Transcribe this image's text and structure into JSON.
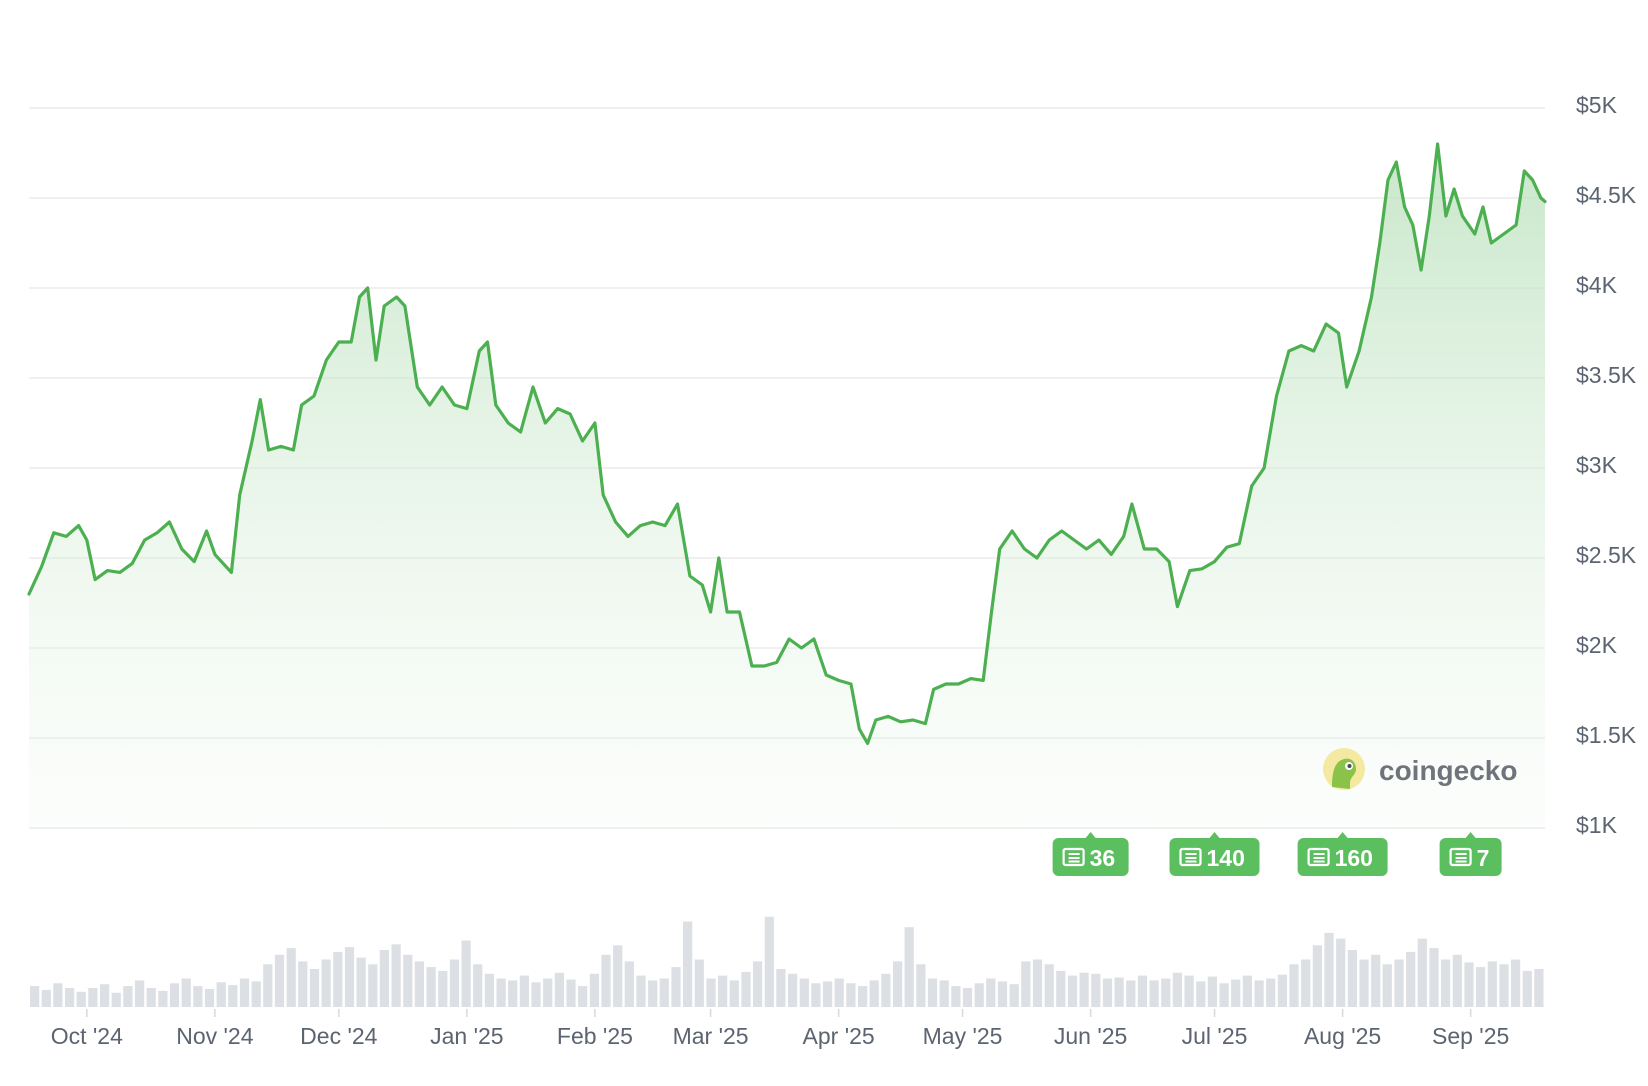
{
  "chart_data": {
    "type": "area",
    "title": "",
    "xlabel": "",
    "ylabel": "",
    "ylim": [
      1000,
      5000
    ],
    "y_ticks": [
      "$5K",
      "$4.5K",
      "$4K",
      "$3.5K",
      "$3K",
      "$2.5K",
      "$2K",
      "$1.5K",
      "$1K"
    ],
    "y_tick_values": [
      5000,
      4500,
      4000,
      3500,
      3000,
      2500,
      2000,
      1500,
      1000
    ],
    "x_ticks": [
      "Oct '24",
      "Nov '24",
      "Dec '24",
      "Jan '25",
      "Feb '25",
      "Mar '25",
      "Apr '25",
      "May '25",
      "Jun '25",
      "Jul '25",
      "Aug '25",
      "Sep '25"
    ],
    "x_tick_dates": [
      "2024-10-01",
      "2024-11-01",
      "2024-12-01",
      "2025-01-01",
      "2025-02-01",
      "2025-03-01",
      "2025-04-01",
      "2025-05-01",
      "2025-06-01",
      "2025-07-01",
      "2025-08-01",
      "2025-09-01"
    ],
    "x_range": [
      "2024-09-17",
      "2025-09-19"
    ],
    "grid": true,
    "line_color": "#4caf50",
    "fill_color": "#c8e6c9",
    "series": [
      {
        "values": [
          [
            "2024-09-17",
            2300
          ],
          [
            "2024-09-20",
            2450
          ],
          [
            "2024-09-23",
            2640
          ],
          [
            "2024-09-26",
            2620
          ],
          [
            "2024-09-29",
            2680
          ],
          [
            "2024-10-01",
            2600
          ],
          [
            "2024-10-03",
            2380
          ],
          [
            "2024-10-06",
            2430
          ],
          [
            "2024-10-09",
            2420
          ],
          [
            "2024-10-12",
            2470
          ],
          [
            "2024-10-15",
            2600
          ],
          [
            "2024-10-18",
            2640
          ],
          [
            "2024-10-21",
            2700
          ],
          [
            "2024-10-24",
            2550
          ],
          [
            "2024-10-27",
            2480
          ],
          [
            "2024-10-30",
            2650
          ],
          [
            "2024-11-01",
            2520
          ],
          [
            "2024-11-03",
            2470
          ],
          [
            "2024-11-05",
            2420
          ],
          [
            "2024-11-07",
            2850
          ],
          [
            "2024-11-10",
            3150
          ],
          [
            "2024-11-12",
            3380
          ],
          [
            "2024-11-14",
            3100
          ],
          [
            "2024-11-17",
            3120
          ],
          [
            "2024-11-20",
            3100
          ],
          [
            "2024-11-22",
            3350
          ],
          [
            "2024-11-25",
            3400
          ],
          [
            "2024-11-28",
            3600
          ],
          [
            "2024-12-01",
            3700
          ],
          [
            "2024-12-04",
            3700
          ],
          [
            "2024-12-06",
            3950
          ],
          [
            "2024-12-08",
            4000
          ],
          [
            "2024-12-10",
            3600
          ],
          [
            "2024-12-12",
            3900
          ],
          [
            "2024-12-15",
            3950
          ],
          [
            "2024-12-17",
            3900
          ],
          [
            "2024-12-20",
            3450
          ],
          [
            "2024-12-23",
            3350
          ],
          [
            "2024-12-26",
            3450
          ],
          [
            "2024-12-29",
            3350
          ],
          [
            "2025-01-01",
            3330
          ],
          [
            "2025-01-04",
            3650
          ],
          [
            "2025-01-06",
            3700
          ],
          [
            "2025-01-08",
            3350
          ],
          [
            "2025-01-11",
            3250
          ],
          [
            "2025-01-14",
            3200
          ],
          [
            "2025-01-17",
            3450
          ],
          [
            "2025-01-20",
            3250
          ],
          [
            "2025-01-23",
            3330
          ],
          [
            "2025-01-26",
            3300
          ],
          [
            "2025-01-29",
            3150
          ],
          [
            "2025-02-01",
            3250
          ],
          [
            "2025-02-03",
            2850
          ],
          [
            "2025-02-06",
            2700
          ],
          [
            "2025-02-09",
            2620
          ],
          [
            "2025-02-12",
            2680
          ],
          [
            "2025-02-15",
            2700
          ],
          [
            "2025-02-18",
            2680
          ],
          [
            "2025-02-21",
            2800
          ],
          [
            "2025-02-24",
            2400
          ],
          [
            "2025-02-27",
            2350
          ],
          [
            "2025-03-01",
            2200
          ],
          [
            "2025-03-03",
            2500
          ],
          [
            "2025-03-05",
            2200
          ],
          [
            "2025-03-08",
            2200
          ],
          [
            "2025-03-11",
            1900
          ],
          [
            "2025-03-14",
            1900
          ],
          [
            "2025-03-17",
            1920
          ],
          [
            "2025-03-20",
            2050
          ],
          [
            "2025-03-23",
            2000
          ],
          [
            "2025-03-26",
            2050
          ],
          [
            "2025-03-29",
            1850
          ],
          [
            "2025-04-01",
            1820
          ],
          [
            "2025-04-04",
            1800
          ],
          [
            "2025-04-06",
            1550
          ],
          [
            "2025-04-08",
            1470
          ],
          [
            "2025-04-10",
            1600
          ],
          [
            "2025-04-13",
            1620
          ],
          [
            "2025-04-16",
            1590
          ],
          [
            "2025-04-19",
            1600
          ],
          [
            "2025-04-22",
            1580
          ],
          [
            "2025-04-24",
            1770
          ],
          [
            "2025-04-27",
            1800
          ],
          [
            "2025-04-30",
            1800
          ],
          [
            "2025-05-03",
            1830
          ],
          [
            "2025-05-06",
            1820
          ],
          [
            "2025-05-08",
            2200
          ],
          [
            "2025-05-10",
            2550
          ],
          [
            "2025-05-13",
            2650
          ],
          [
            "2025-05-16",
            2550
          ],
          [
            "2025-05-19",
            2500
          ],
          [
            "2025-05-22",
            2600
          ],
          [
            "2025-05-25",
            2650
          ],
          [
            "2025-05-28",
            2600
          ],
          [
            "2025-05-31",
            2550
          ],
          [
            "2025-06-03",
            2600
          ],
          [
            "2025-06-06",
            2520
          ],
          [
            "2025-06-09",
            2620
          ],
          [
            "2025-06-11",
            2800
          ],
          [
            "2025-06-14",
            2550
          ],
          [
            "2025-06-17",
            2550
          ],
          [
            "2025-06-20",
            2480
          ],
          [
            "2025-06-22",
            2230
          ],
          [
            "2025-06-25",
            2430
          ],
          [
            "2025-06-28",
            2440
          ],
          [
            "2025-07-01",
            2480
          ],
          [
            "2025-07-04",
            2560
          ],
          [
            "2025-07-07",
            2580
          ],
          [
            "2025-07-10",
            2900
          ],
          [
            "2025-07-13",
            3000
          ],
          [
            "2025-07-16",
            3400
          ],
          [
            "2025-07-19",
            3650
          ],
          [
            "2025-07-22",
            3680
          ],
          [
            "2025-07-25",
            3650
          ],
          [
            "2025-07-28",
            3800
          ],
          [
            "2025-07-31",
            3750
          ],
          [
            "2025-08-02",
            3450
          ],
          [
            "2025-08-05",
            3650
          ],
          [
            "2025-08-08",
            3950
          ],
          [
            "2025-08-10",
            4250
          ],
          [
            "2025-08-12",
            4600
          ],
          [
            "2025-08-14",
            4700
          ],
          [
            "2025-08-16",
            4450
          ],
          [
            "2025-08-18",
            4350
          ],
          [
            "2025-08-20",
            4100
          ],
          [
            "2025-08-22",
            4400
          ],
          [
            "2025-08-24",
            4800
          ],
          [
            "2025-08-26",
            4400
          ],
          [
            "2025-08-28",
            4550
          ],
          [
            "2025-08-30",
            4400
          ],
          [
            "2025-09-02",
            4300
          ],
          [
            "2025-09-04",
            4450
          ],
          [
            "2025-09-06",
            4250
          ],
          [
            "2025-09-09",
            4300
          ],
          [
            "2025-09-12",
            4350
          ],
          [
            "2025-09-14",
            4650
          ],
          [
            "2025-09-16",
            4600
          ],
          [
            "2025-09-18",
            4500
          ],
          [
            "2025-09-19",
            4480
          ]
        ]
      }
    ],
    "volume_series": {
      "name": "",
      "color": "#dcdfe3",
      "relative_heights": [
        0.22,
        0.18,
        0.25,
        0.2,
        0.16,
        0.2,
        0.24,
        0.15,
        0.22,
        0.28,
        0.2,
        0.17,
        0.25,
        0.3,
        0.22,
        0.19,
        0.26,
        0.23,
        0.3,
        0.27,
        0.45,
        0.55,
        0.62,
        0.48,
        0.4,
        0.5,
        0.58,
        0.63,
        0.52,
        0.45,
        0.6,
        0.66,
        0.55,
        0.48,
        0.42,
        0.38,
        0.5,
        0.7,
        0.45,
        0.35,
        0.3,
        0.28,
        0.33,
        0.26,
        0.3,
        0.36,
        0.29,
        0.22,
        0.35,
        0.55,
        0.65,
        0.48,
        0.33,
        0.28,
        0.3,
        0.42,
        0.9,
        0.5,
        0.3,
        0.33,
        0.28,
        0.37,
        0.48,
        0.95,
        0.4,
        0.35,
        0.3,
        0.25,
        0.27,
        0.3,
        0.25,
        0.22,
        0.28,
        0.35,
        0.48,
        0.84,
        0.45,
        0.3,
        0.28,
        0.22,
        0.2,
        0.25,
        0.3,
        0.27,
        0.24,
        0.48,
        0.5,
        0.45,
        0.38,
        0.33,
        0.36,
        0.35,
        0.3,
        0.31,
        0.28,
        0.33,
        0.28,
        0.3,
        0.36,
        0.33,
        0.27,
        0.32,
        0.25,
        0.29,
        0.33,
        0.28,
        0.3,
        0.34,
        0.45,
        0.5,
        0.65,
        0.78,
        0.72,
        0.6,
        0.5,
        0.55,
        0.45,
        0.5,
        0.58,
        0.72,
        0.62,
        0.5,
        0.55,
        0.47,
        0.42,
        0.48,
        0.45,
        0.5,
        0.38,
        0.4
      ]
    },
    "news_badges": [
      {
        "count": "36",
        "date": "2025-06-01"
      },
      {
        "count": "140",
        "date": "2025-07-01"
      },
      {
        "count": "160",
        "date": "2025-08-01"
      },
      {
        "count": "7",
        "date": "2025-09-01"
      }
    ]
  },
  "watermark": {
    "text": "coingecko"
  }
}
